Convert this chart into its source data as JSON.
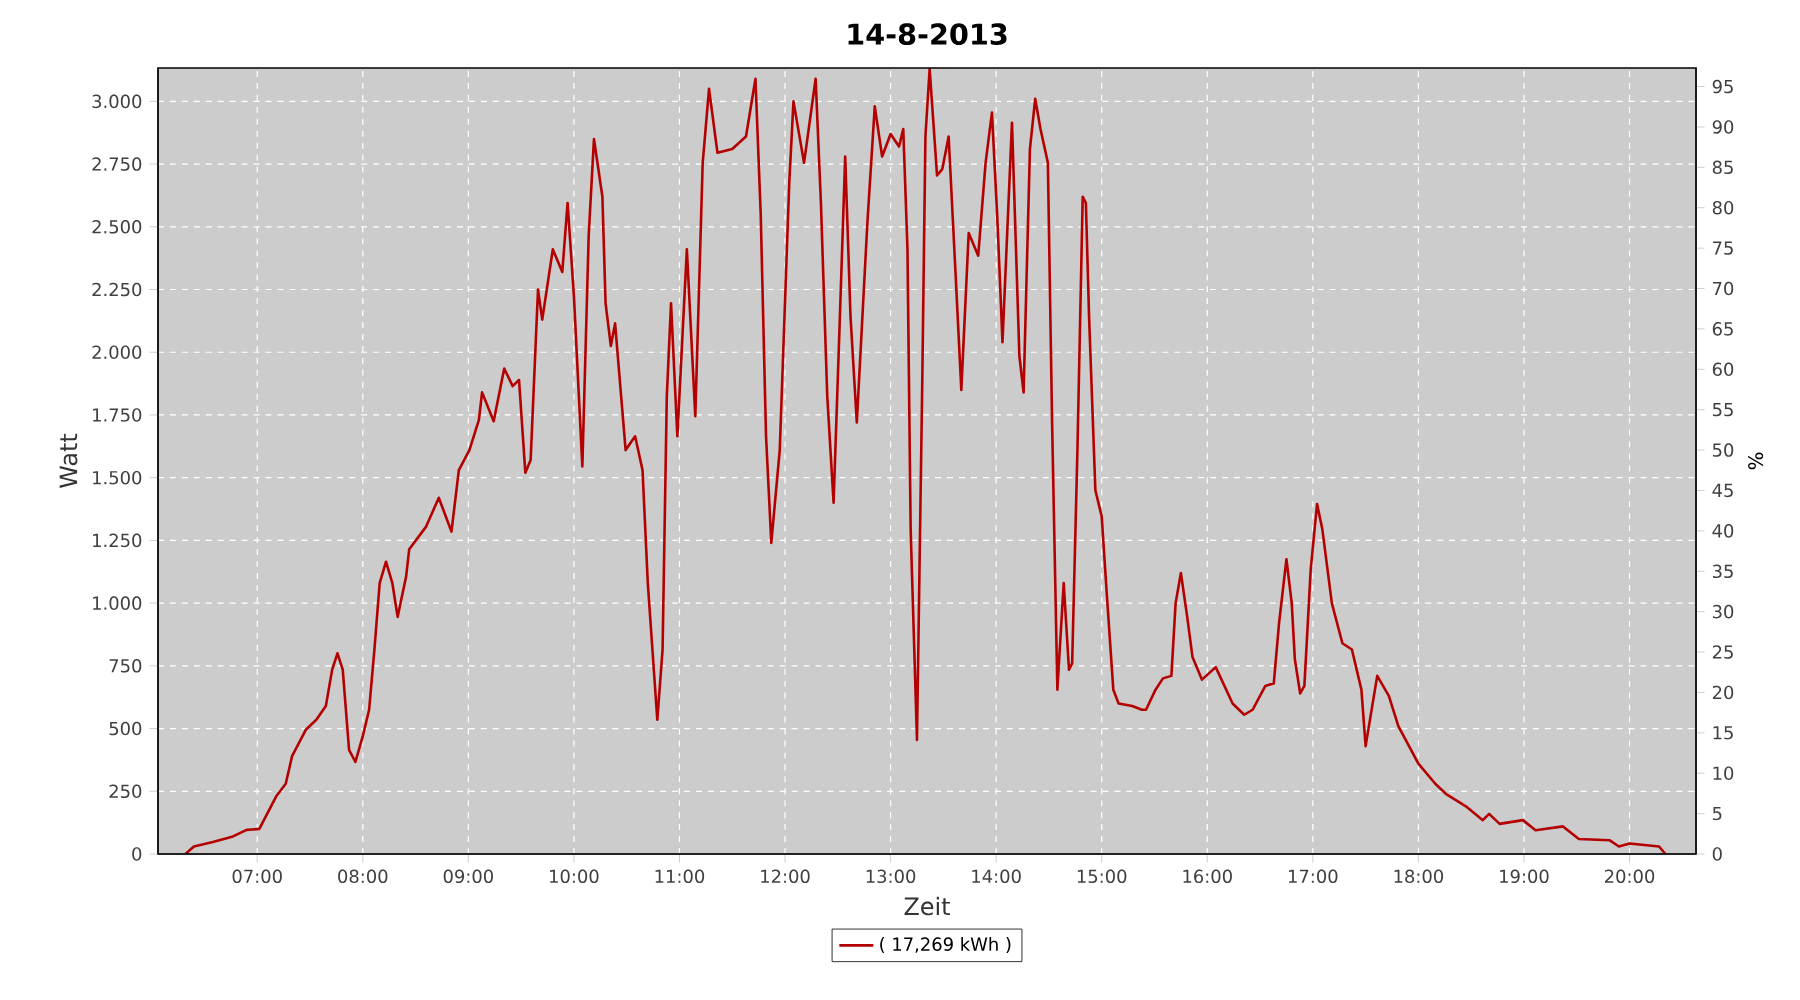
{
  "chart_data": {
    "type": "line",
    "title": "14-8-2013",
    "xlabel": "Zeit",
    "ylabel": "Watt",
    "y2label": "%",
    "xlim": [
      6.06,
      20.63
    ],
    "ylim": [
      0,
      3133
    ],
    "y2lim": [
      0,
      97.3
    ],
    "xticks": [
      {
        "value": 7,
        "label": "07:00"
      },
      {
        "value": 8,
        "label": "08:00"
      },
      {
        "value": 9,
        "label": "09:00"
      },
      {
        "value": 10,
        "label": "10:00"
      },
      {
        "value": 11,
        "label": "11:00"
      },
      {
        "value": 12,
        "label": "12:00"
      },
      {
        "value": 13,
        "label": "13:00"
      },
      {
        "value": 14,
        "label": "14:00"
      },
      {
        "value": 15,
        "label": "15:00"
      },
      {
        "value": 16,
        "label": "16:00"
      },
      {
        "value": 17,
        "label": "17:00"
      },
      {
        "value": 18,
        "label": "18:00"
      },
      {
        "value": 19,
        "label": "19:00"
      },
      {
        "value": 20,
        "label": "20:00"
      }
    ],
    "yticks": [
      0,
      250,
      500,
      750,
      {
        "value": 1000,
        "label": "1.000"
      },
      {
        "value": 1250,
        "label": "1.250"
      },
      {
        "value": 1500,
        "label": "1.500"
      },
      {
        "value": 1750,
        "label": "1.750"
      },
      {
        "value": 2000,
        "label": "2.000"
      },
      {
        "value": 2250,
        "label": "2.250"
      },
      {
        "value": 2500,
        "label": "2.500"
      },
      {
        "value": 2750,
        "label": "2.750"
      },
      {
        "value": 3000,
        "label": "3.000"
      }
    ],
    "y2ticks": [
      0,
      5,
      10,
      15,
      20,
      25,
      30,
      35,
      40,
      45,
      50,
      55,
      60,
      65,
      70,
      75,
      80,
      85,
      90,
      95
    ],
    "grid": true,
    "legend": "bottom",
    "marker": "none",
    "line_style": "solid",
    "series": [
      {
        "name": "( 17,269 kWh )",
        "color": "#b40000",
        "x": [
          6.32,
          6.4,
          6.58,
          6.77,
          6.9,
          7.02,
          7.18,
          7.27,
          7.33,
          7.46,
          7.56,
          7.65,
          7.71,
          7.76,
          7.81,
          7.87,
          7.93,
          8.0,
          8.06,
          8.11,
          8.16,
          8.22,
          8.28,
          8.33,
          8.41,
          8.44,
          8.6,
          8.72,
          8.84,
          8.91,
          9.01,
          9.1,
          9.13,
          9.24,
          9.34,
          9.42,
          9.48,
          9.54,
          9.59,
          9.66,
          9.7,
          9.8,
          9.89,
          9.94,
          10.0,
          10.05,
          10.08,
          10.14,
          10.19,
          10.27,
          10.3,
          10.35,
          10.39,
          10.49,
          10.58,
          10.65,
          10.7,
          10.79,
          10.84,
          10.88,
          10.92,
          10.98,
          11.07,
          11.15,
          11.22,
          11.28,
          11.36,
          11.5,
          11.63,
          11.72,
          11.77,
          11.82,
          11.87,
          11.95,
          12.04,
          12.08,
          12.18,
          12.29,
          12.34,
          12.4,
          12.46,
          12.52,
          12.57,
          12.62,
          12.68,
          12.78,
          12.85,
          12.92,
          13.0,
          13.08,
          13.12,
          13.16,
          13.19,
          13.25,
          13.3,
          13.33,
          13.37,
          13.44,
          13.49,
          13.55,
          13.62,
          13.67,
          13.74,
          13.83,
          13.9,
          13.96,
          14.01,
          14.06,
          14.15,
          14.22,
          14.26,
          14.32,
          14.37,
          14.42,
          14.49,
          14.53,
          14.58,
          14.64,
          14.69,
          14.72,
          14.77,
          14.82,
          14.85,
          14.88,
          14.94,
          15.0,
          15.05,
          15.11,
          15.16,
          15.29,
          15.38,
          15.42,
          15.51,
          15.58,
          15.66,
          15.7,
          15.75,
          15.81,
          15.86,
          15.95,
          16.08,
          16.24,
          16.35,
          16.43,
          16.55,
          16.63,
          16.68,
          16.75,
          16.8,
          16.83,
          16.88,
          16.92,
          16.98,
          17.04,
          17.09,
          17.18,
          17.28,
          17.37,
          17.46,
          17.5,
          17.61,
          17.72,
          17.81,
          18.0,
          18.16,
          18.26,
          18.45,
          18.61,
          18.67,
          18.77,
          18.99,
          19.11,
          19.37,
          19.52,
          19.81,
          19.9,
          20.0,
          20.28,
          20.34
        ],
        "values": [
          0,
          30,
          48,
          70,
          96,
          100,
          230,
          280,
          390,
          495,
          535,
          590,
          735,
          800,
          735,
          415,
          367,
          470,
          575,
          815,
          1080,
          1165,
          1080,
          945,
          1105,
          1215,
          1305,
          1420,
          1285,
          1530,
          1610,
          1730,
          1840,
          1725,
          1935,
          1865,
          1890,
          1520,
          1570,
          2250,
          2130,
          2410,
          2320,
          2595,
          2225,
          1800,
          1545,
          2465,
          2850,
          2620,
          2195,
          2025,
          2115,
          1610,
          1665,
          1530,
          1080,
          535,
          815,
          1825,
          2195,
          1665,
          2410,
          1745,
          2755,
          3050,
          2795,
          2810,
          2860,
          3090,
          2545,
          1665,
          1240,
          1610,
          2675,
          3000,
          2755,
          3090,
          2595,
          1825,
          1400,
          2145,
          2780,
          2145,
          1720,
          2515,
          2980,
          2780,
          2870,
          2820,
          2890,
          2410,
          1295,
          455,
          1880,
          2860,
          3130,
          2705,
          2730,
          2860,
          2275,
          1850,
          2475,
          2385,
          2755,
          2955,
          2545,
          2040,
          2915,
          1985,
          1840,
          2810,
          3010,
          2890,
          2755,
          1720,
          655,
          1080,
          735,
          760,
          1610,
          2620,
          2595,
          2145,
          1450,
          1345,
          1025,
          655,
          600,
          590,
          575,
          575,
          655,
          700,
          710,
          1000,
          1120,
          945,
          785,
          695,
          745,
          600,
          555,
          575,
          670,
          680,
          920,
          1175,
          1000,
          775,
          640,
          670,
          1135,
          1395,
          1295,
          1000,
          840,
          815,
          655,
          430,
          710,
          630,
          510,
          360,
          280,
          240,
          190,
          135,
          160,
          120,
          135,
          95,
          110,
          60,
          55,
          30,
          42,
          30,
          0
        ]
      }
    ]
  }
}
